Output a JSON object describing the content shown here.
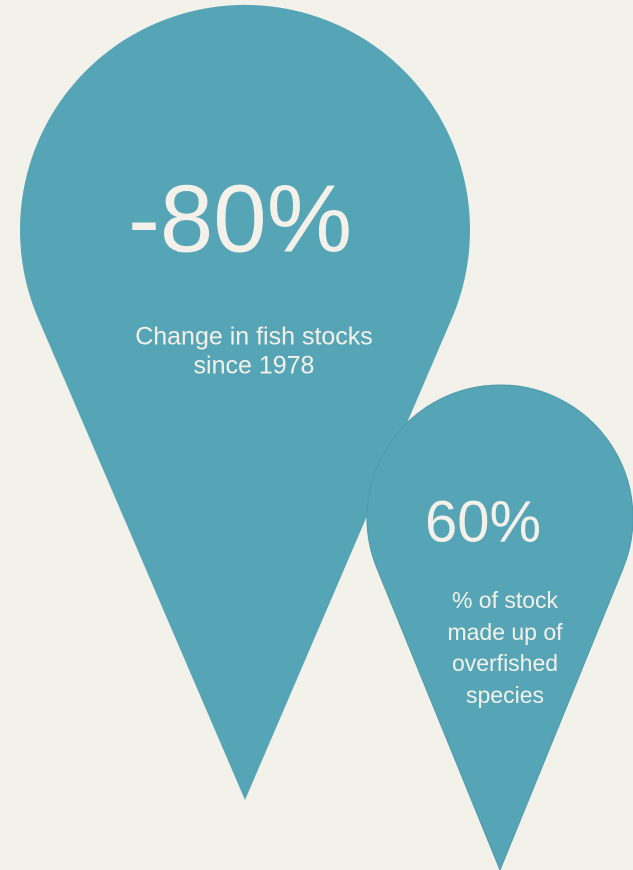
{
  "pins": [
    {
      "value": "-80%",
      "caption": [
        "Change in fish stocks",
        "since 1978"
      ]
    },
    {
      "value": "60%",
      "caption": [
        "% of stock",
        "made up of",
        "overfished",
        "species"
      ]
    }
  ]
}
